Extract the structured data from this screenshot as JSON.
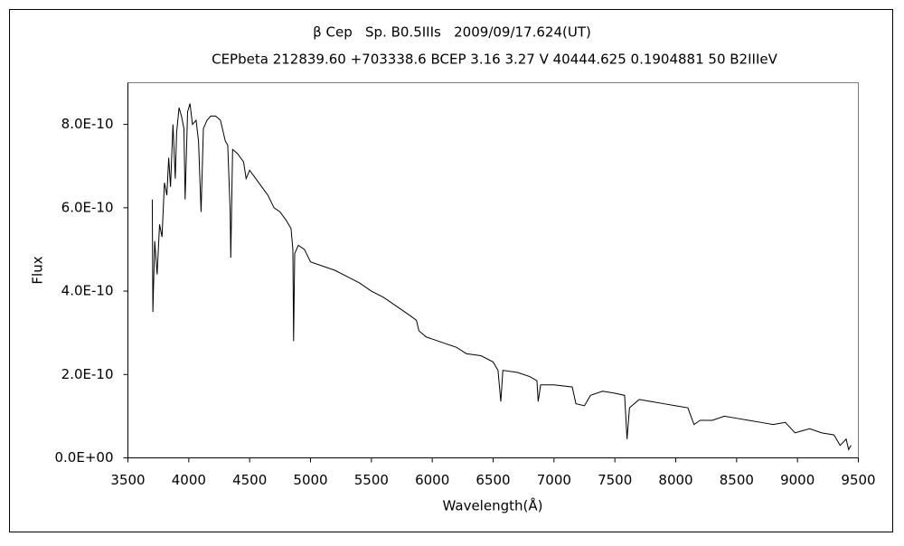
{
  "chart_data": {
    "type": "line",
    "title": "β Cep   Sp. B0.5IIIs   2009/09/17.624(UT)",
    "subtitle": "CEPbeta 212839.60 +703338.6 BCEP 3.16 3.27 V 40444.625 0.1904881 50 B2IIIeV",
    "x_label": "Wavelength(Å)",
    "y_label": "Flux",
    "xlim": [
      3500,
      9500
    ],
    "xticks": [
      3500,
      4000,
      4500,
      5000,
      5500,
      6000,
      6500,
      7000,
      7500,
      8000,
      8500,
      9000,
      9500
    ],
    "ylim": [
      0,
      9e-10
    ],
    "yticks": [
      {
        "value": 0,
        "label": "0.0E+00"
      },
      {
        "value": 2e-10,
        "label": "2.0E-10"
      },
      {
        "value": 4e-10,
        "label": "4.0E-10"
      },
      {
        "value": 6e-10,
        "label": "6.0E-10"
      },
      {
        "value": 8e-10,
        "label": "8.0E-10"
      }
    ],
    "grid": false,
    "color": "#000000",
    "x": [
      3700,
      3705,
      3720,
      3740,
      3760,
      3780,
      3800,
      3820,
      3835,
      3850,
      3870,
      3889,
      3900,
      3920,
      3940,
      3960,
      3970,
      3990,
      4010,
      4030,
      4060,
      4080,
      4101,
      4120,
      4150,
      4180,
      4220,
      4260,
      4300,
      4320,
      4340,
      4345,
      4360,
      4400,
      4450,
      4471,
      4500,
      4550,
      4600,
      4650,
      4700,
      4750,
      4800,
      4840,
      4855,
      4861,
      4870,
      4900,
      4950,
      5000,
      5100,
      5200,
      5300,
      5400,
      5500,
      5600,
      5700,
      5800,
      5870,
      5890,
      5950,
      6000,
      6100,
      6200,
      6280,
      6400,
      6500,
      6540,
      6563,
      6580,
      6700,
      6800,
      6860,
      6870,
      6890,
      7000,
      7150,
      7180,
      7250,
      7300,
      7400,
      7500,
      7580,
      7600,
      7620,
      7700,
      7800,
      7900,
      8000,
      8100,
      8150,
      8200,
      8300,
      8400,
      8500,
      8600,
      8700,
      8800,
      8900,
      8980,
      9100,
      9200,
      9300,
      9350,
      9400,
      9420,
      9440
    ],
    "values": [
      6.2e-10,
      3.5e-10,
      5.2e-10,
      4.4e-10,
      5.6e-10,
      5.3e-10,
      6.6e-10,
      6.3e-10,
      7.2e-10,
      6.5e-10,
      8e-10,
      6.7e-10,
      7.8e-10,
      8.4e-10,
      8.2e-10,
      7.9e-10,
      6.2e-10,
      8.3e-10,
      8.5e-10,
      8e-10,
      8.1e-10,
      7.6e-10,
      5.9e-10,
      7.9e-10,
      8.1e-10,
      8.2e-10,
      8.2e-10,
      8.1e-10,
      7.6e-10,
      7.5e-10,
      5.9e-10,
      4.8e-10,
      7.4e-10,
      7.3e-10,
      7.1e-10,
      6.7e-10,
      6.9e-10,
      6.7e-10,
      6.5e-10,
      6.3e-10,
      6e-10,
      5.9e-10,
      5.7e-10,
      5.5e-10,
      5e-10,
      2.8e-10,
      4.9e-10,
      5.1e-10,
      5e-10,
      4.7e-10,
      4.6e-10,
      4.5e-10,
      4.35e-10,
      4.2e-10,
      4e-10,
      3.85e-10,
      3.65e-10,
      3.45e-10,
      3.3e-10,
      3.05e-10,
      2.9e-10,
      2.85e-10,
      2.75e-10,
      2.65e-10,
      2.5e-10,
      2.45e-10,
      2.3e-10,
      2.1e-10,
      1.35e-10,
      2.1e-10,
      2.05e-10,
      1.95e-10,
      1.85e-10,
      1.35e-10,
      1.75e-10,
      1.75e-10,
      1.7e-10,
      1.3e-10,
      1.25e-10,
      1.5e-10,
      1.6e-10,
      1.55e-10,
      1.5e-10,
      4.5e-11,
      1.2e-10,
      1.4e-10,
      1.35e-10,
      1.3e-10,
      1.25e-10,
      1.2e-10,
      8e-11,
      9e-11,
      9e-11,
      1e-10,
      9.5e-11,
      9e-11,
      8.5e-11,
      8e-11,
      8.5e-11,
      6e-11,
      7e-11,
      6e-11,
      5.5e-11,
      3e-11,
      4.5e-11,
      2e-11,
      3e-11
    ]
  }
}
